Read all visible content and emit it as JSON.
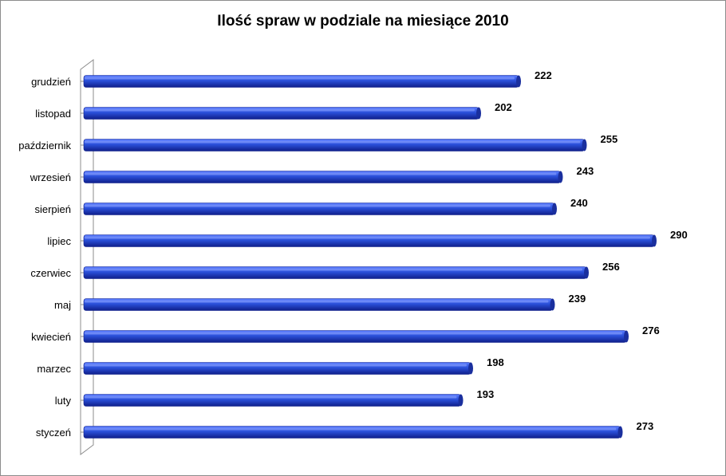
{
  "chart_data": {
    "type": "bar",
    "orientation": "horizontal",
    "title": "Ilość spraw w podziale na miesiące 2010",
    "categories": [
      "grudzień",
      "listopad",
      "październik",
      "wrzesień",
      "sierpień",
      "lipiec",
      "czerwiec",
      "maj",
      "kwiecień",
      "marzec",
      "luty",
      "styczeń"
    ],
    "values": [
      222,
      202,
      255,
      243,
      240,
      290,
      256,
      239,
      276,
      198,
      193,
      273
    ],
    "xlim": [
      0,
      300
    ],
    "grid": false,
    "legend": "none",
    "data_labels": true,
    "colors": {
      "bar_top": "#5b7dff",
      "bar_mid": "#2a4fd9",
      "bar_bottom": "#0f1f8a",
      "bar_cap": "#1a2f9e",
      "axis": "#8c8c8c"
    }
  }
}
